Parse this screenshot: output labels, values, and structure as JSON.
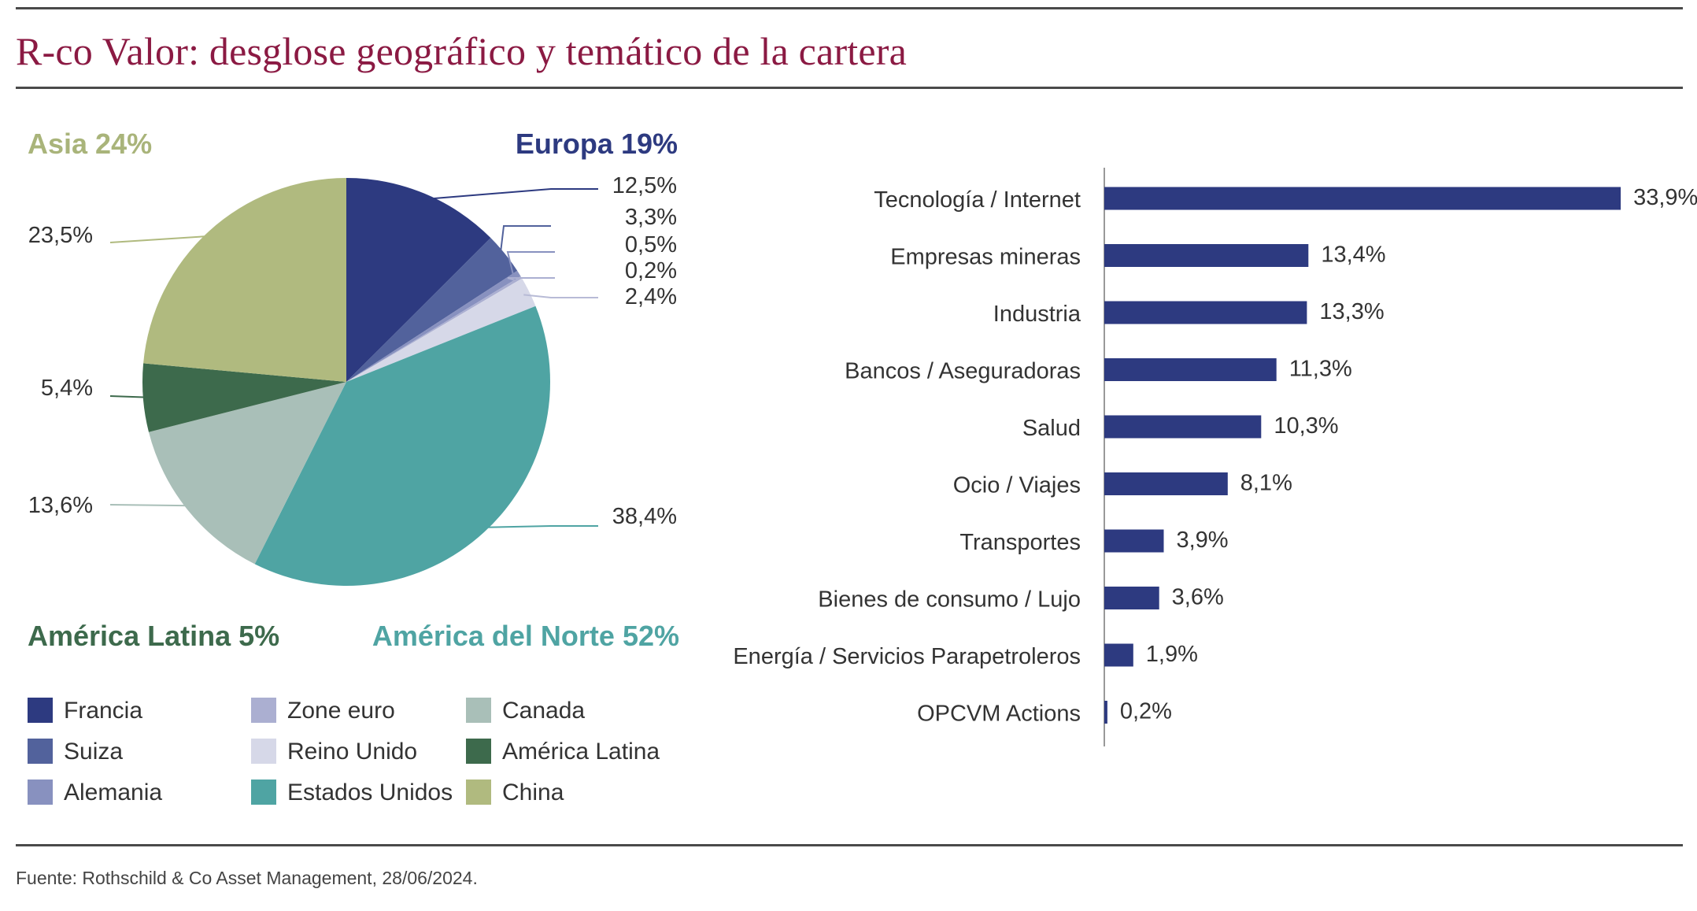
{
  "title": "R-co Valor: desglose geográfico y temático de la cartera",
  "source": "Fuente: Rothschild & Co Asset Management, 28/06/2024.",
  "colors": {
    "title": "#8b1a43",
    "bar": "#2d3a80",
    "europa": "#2d3a80",
    "asia": "#a9b47a",
    "america_latina": "#3d6a4c",
    "america_norte": "#4fa4a3"
  },
  "chart_data": [
    {
      "type": "pie",
      "regions": [
        {
          "label": "Europa 19%",
          "color": "#2d3a80"
        },
        {
          "label": "Asia 24%",
          "color": "#a9b47a"
        },
        {
          "label": "América Latina 5%",
          "color": "#3d6a4c"
        },
        {
          "label": "América del Norte 52%",
          "color": "#4fa4a3"
        }
      ],
      "slices": [
        {
          "name": "Francia",
          "value": 12.5,
          "label": "12,5%",
          "color": "#2d3a80"
        },
        {
          "name": "Suiza",
          "value": 3.3,
          "label": "3,3%",
          "color": "#52629c"
        },
        {
          "name": "Alemania",
          "value": 0.5,
          "label": "0,5%",
          "color": "#8891bf"
        },
        {
          "name": "Zone euro",
          "value": 0.2,
          "label": "0,2%",
          "color": "#abafd1"
        },
        {
          "name": "Reino Unido",
          "value": 2.4,
          "label": "2,4%",
          "color": "#d6d8e8"
        },
        {
          "name": "Estados Unidos",
          "value": 38.4,
          "label": "38,4%",
          "color": "#4fa4a3"
        },
        {
          "name": "Canada",
          "value": 13.6,
          "label": "13,6%",
          "color": "#a9bfb8"
        },
        {
          "name": "América Latina",
          "value": 5.4,
          "label": "5,4%",
          "color": "#3d6a4c"
        },
        {
          "name": "China",
          "value": 23.5,
          "label": "23,5%",
          "color": "#b0ba7f"
        }
      ],
      "legend": [
        "Francia",
        "Suiza",
        "Alemania",
        "Zone euro",
        "Reino Unido",
        "Estados Unidos",
        "Canada",
        "América Latina",
        "China"
      ]
    },
    {
      "type": "bar",
      "orientation": "horizontal",
      "categories": [
        "Tecnología / Internet",
        "Empresas mineras",
        "Industria",
        "Bancos / Aseguradoras",
        "Salud",
        "Ocio / Viajes",
        "Transportes",
        "Bienes de consumo / Lujo",
        "Energía / Servicios Parapetroleros",
        "OPCVM Actions"
      ],
      "values": [
        33.9,
        13.4,
        13.3,
        11.3,
        10.3,
        8.1,
        3.9,
        3.6,
        1.9,
        0.2
      ],
      "value_labels": [
        "33,9%",
        "13,4%",
        "13,3%",
        "11,3%",
        "10,3%",
        "8,1%",
        "3,9%",
        "3,6%",
        "1,9%",
        "0,2%"
      ],
      "xlim": [
        0,
        34
      ]
    }
  ]
}
